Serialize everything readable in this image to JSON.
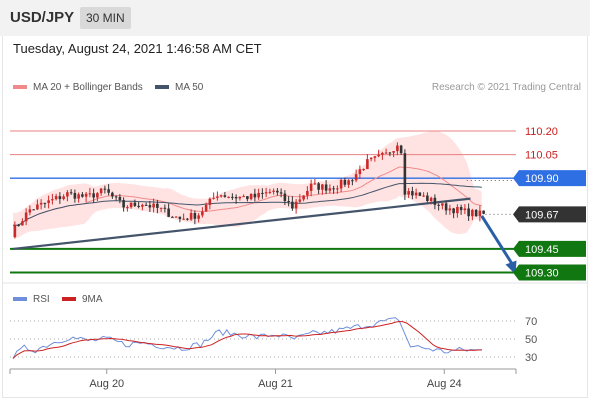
{
  "header": {
    "pair": "USD/JPY",
    "timeframe": "30 MIN"
  },
  "datetime": "Tuesday, August 24, 2021 1:46:58 AM CET",
  "credit": "Research © 2021 Trading Central",
  "colors": {
    "bullish": "#cc2a2a",
    "bearish": "#333333",
    "bollinger": "#ffd9d9",
    "ma20": "#f08a8a",
    "ma50": "#44546a",
    "resistance": "#e88080",
    "blue_level": "#2f6fe4",
    "support": "#117711",
    "arrow": "#2a5fa8",
    "rsi": "#6f8fdc",
    "rsi_ma": "#cc2222"
  },
  "chart_data": [
    {
      "type": "candlestick",
      "legend": [
        {
          "name": "MA 20 + Bollinger Bands",
          "color": "#f08a8a"
        },
        {
          "name": "MA 50",
          "color": "#44546a"
        }
      ],
      "x_ticks": [
        {
          "label": "Aug 20",
          "index": 25
        },
        {
          "label": "Aug 21",
          "index": 70
        },
        {
          "label": "Aug 24",
          "index": 115
        }
      ],
      "ylim": [
        109.22,
        110.34
      ],
      "levels": [
        {
          "label": "110.20",
          "value": 110.2,
          "kind": "resistance"
        },
        {
          "label": "110.05",
          "value": 110.05,
          "kind": "resistance"
        },
        {
          "label": "109.90",
          "value": 109.9,
          "kind": "pivot"
        },
        {
          "label": "109.67",
          "value": 109.67,
          "kind": "current"
        },
        {
          "label": "109.45",
          "value": 109.45,
          "kind": "support"
        },
        {
          "label": "109.30",
          "value": 109.3,
          "kind": "support"
        }
      ],
      "trendline": {
        "start": [
          0,
          109.45
        ],
        "end": [
          122,
          109.77
        ]
      },
      "arrow": {
        "from": [
          125,
          109.66
        ],
        "to": [
          134,
          109.3
        ]
      },
      "anchors": [
        [
          0,
          109.55
        ],
        [
          5,
          109.7
        ],
        [
          10,
          109.75
        ],
        [
          15,
          109.8
        ],
        [
          20,
          109.78
        ],
        [
          25,
          109.82
        ],
        [
          30,
          109.72
        ],
        [
          35,
          109.74
        ],
        [
          40,
          109.7
        ],
        [
          45,
          109.64
        ],
        [
          50,
          109.67
        ],
        [
          55,
          109.8
        ],
        [
          60,
          109.78
        ],
        [
          65,
          109.78
        ],
        [
          70,
          109.82
        ],
        [
          75,
          109.72
        ],
        [
          80,
          109.85
        ],
        [
          85,
          109.84
        ],
        [
          90,
          109.88
        ],
        [
          95,
          110.0
        ],
        [
          100,
          110.05
        ],
        [
          103,
          110.12
        ],
        [
          104,
          110.08
        ],
        [
          105,
          109.82
        ],
        [
          110,
          109.78
        ],
        [
          115,
          109.72
        ],
        [
          120,
          109.69
        ],
        [
          125,
          109.67
        ]
      ]
    },
    {
      "type": "line",
      "legend": [
        {
          "name": "RSI",
          "color": "#6f8fdc"
        },
        {
          "name": "9MA",
          "color": "#cc2222"
        }
      ],
      "y_ticks": [
        70,
        50,
        30
      ],
      "ylim": [
        22,
        78
      ],
      "anchors": [
        [
          0,
          30
        ],
        [
          3,
          40
        ],
        [
          6,
          38
        ],
        [
          10,
          45
        ],
        [
          15,
          52
        ],
        [
          20,
          48
        ],
        [
          25,
          50
        ],
        [
          30,
          44
        ],
        [
          35,
          46
        ],
        [
          40,
          42
        ],
        [
          45,
          40
        ],
        [
          50,
          44
        ],
        [
          55,
          58
        ],
        [
          60,
          55
        ],
        [
          65,
          52
        ],
        [
          70,
          55
        ],
        [
          75,
          50
        ],
        [
          80,
          56
        ],
        [
          85,
          58
        ],
        [
          90,
          62
        ],
        [
          95,
          66
        ],
        [
          100,
          70
        ],
        [
          103,
          72
        ],
        [
          104,
          60
        ],
        [
          106,
          42
        ],
        [
          110,
          40
        ],
        [
          115,
          36
        ],
        [
          120,
          38
        ],
        [
          125,
          37
        ]
      ]
    }
  ]
}
